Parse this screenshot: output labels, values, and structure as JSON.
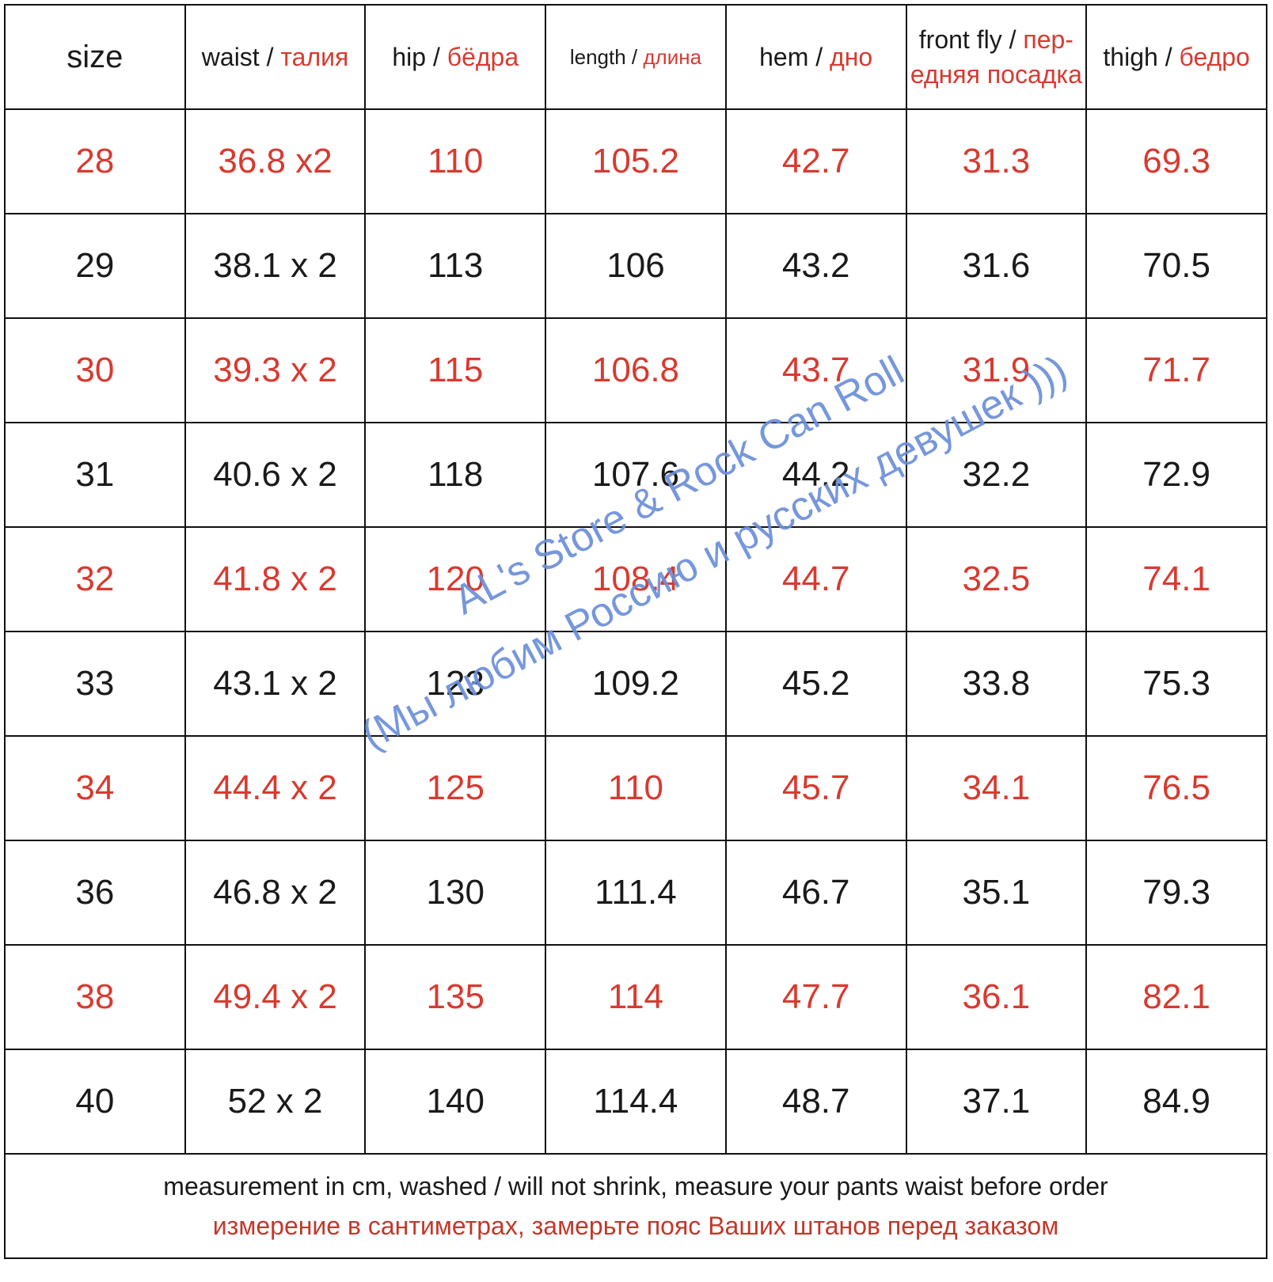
{
  "columns": [
    {
      "en": "size",
      "sep": "",
      "ru": ""
    },
    {
      "en": "waist",
      "sep": " / ",
      "ru": "талия"
    },
    {
      "en": "hip",
      "sep": " / ",
      "ru": "бёдра"
    },
    {
      "en": "length",
      "sep": " / ",
      "ru": "длина"
    },
    {
      "en": "hem",
      "sep": " / ",
      "ru": "дно"
    },
    {
      "en": "front fly",
      "sep": " / ",
      "ru": "пер­едняя посадка"
    },
    {
      "en": "thigh",
      "sep": " / ",
      "ru": "бедро"
    }
  ],
  "rows": [
    [
      "28",
      "36.8 x2",
      "110",
      "105.2",
      "42.7",
      "31.3",
      "69.3"
    ],
    [
      "29",
      "38.1 x 2",
      "113",
      "106",
      "43.2",
      "31.6",
      "70.5"
    ],
    [
      "30",
      "39.3 x 2",
      "115",
      "106.8",
      "43.7",
      "31.9",
      "71.7"
    ],
    [
      "31",
      "40.6 x 2",
      "118",
      "107.6",
      "44.2",
      "32.2",
      "72.9"
    ],
    [
      "32",
      "41.8 x 2",
      "120",
      "108.4",
      "44.7",
      "32.5",
      "74.1"
    ],
    [
      "33",
      "43.1 x 2",
      "123",
      "109.2",
      "45.2",
      "33.8",
      "75.3"
    ],
    [
      "34",
      "44.4 x 2",
      "125",
      "110",
      "45.7",
      "34.1",
      "76.5"
    ],
    [
      "36",
      "46.8 x 2",
      "130",
      "111.4",
      "46.7",
      "35.1",
      "79.3"
    ],
    [
      "38",
      "49.4 x 2",
      "135",
      "114",
      "47.7",
      "36.1",
      "82.1"
    ],
    [
      "40",
      "52 x 2",
      "140",
      "114.4",
      "48.7",
      "37.1",
      "84.9"
    ]
  ],
  "footer": {
    "en": "measurement in cm, washed / will not shrink, measure your pants waist before order",
    "ru": "измерение в сантиметрах, замерьте пояс Ваших штанов перед заказом"
  },
  "watermark": {
    "line1": "AL's Store & Rock Can Roll",
    "line2": "(Мы любим Россию и русских девушек )))"
  },
  "colors": {
    "accent_red": "#d83a30",
    "watermark_blue": "#6b8fd9",
    "text": "#1a1a1a"
  }
}
